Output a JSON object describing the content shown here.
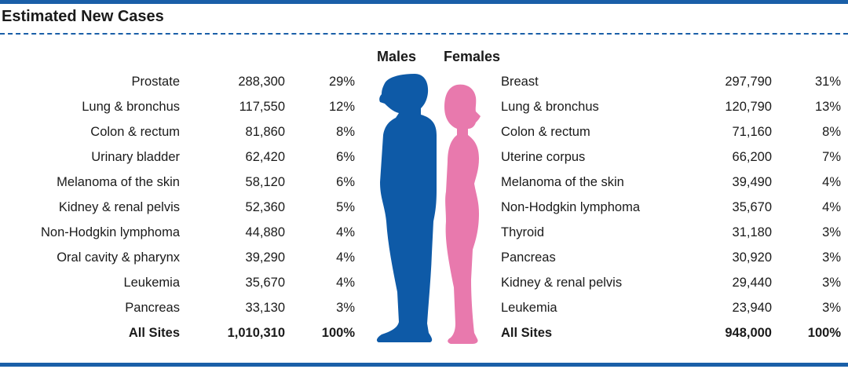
{
  "title": "Estimated New Cases",
  "headers": {
    "males": "Males",
    "females": "Females"
  },
  "colors": {
    "rule": "#1a5fa8",
    "male": "#0e5aa7",
    "female": "#e879ad"
  },
  "chart_data": {
    "type": "table",
    "males": [
      {
        "site": "Prostate",
        "cases": "288,300",
        "pct": "29%"
      },
      {
        "site": "Lung & bronchus",
        "cases": "117,550",
        "pct": "12%"
      },
      {
        "site": "Colon & rectum",
        "cases": "81,860",
        "pct": "8%"
      },
      {
        "site": "Urinary bladder",
        "cases": "62,420",
        "pct": "6%"
      },
      {
        "site": "Melanoma of the skin",
        "cases": "58,120",
        "pct": "6%"
      },
      {
        "site": "Kidney & renal pelvis",
        "cases": "52,360",
        "pct": "5%"
      },
      {
        "site": "Non-Hodgkin lymphoma",
        "cases": "44,880",
        "pct": "4%"
      },
      {
        "site": "Oral cavity & pharynx",
        "cases": "39,290",
        "pct": "4%"
      },
      {
        "site": "Leukemia",
        "cases": "35,670",
        "pct": "4%"
      },
      {
        "site": "Pancreas",
        "cases": "33,130",
        "pct": "3%"
      }
    ],
    "males_total": {
      "site": "All Sites",
      "cases": "1,010,310",
      "pct": "100%"
    },
    "females": [
      {
        "site": "Breast",
        "cases": "297,790",
        "pct": "31%"
      },
      {
        "site": "Lung & bronchus",
        "cases": "120,790",
        "pct": "13%"
      },
      {
        "site": "Colon & rectum",
        "cases": "71,160",
        "pct": "8%"
      },
      {
        "site": "Uterine corpus",
        "cases": "66,200",
        "pct": "7%"
      },
      {
        "site": "Melanoma of the skin",
        "cases": "39,490",
        "pct": "4%"
      },
      {
        "site": "Non-Hodgkin lymphoma",
        "cases": "35,670",
        "pct": "4%"
      },
      {
        "site": "Thyroid",
        "cases": "31,180",
        "pct": "3%"
      },
      {
        "site": "Pancreas",
        "cases": "30,920",
        "pct": "3%"
      },
      {
        "site": "Kidney & renal pelvis",
        "cases": "29,440",
        "pct": "3%"
      },
      {
        "site": "Leukemia",
        "cases": "23,940",
        "pct": "3%"
      }
    ],
    "females_total": {
      "site": "All Sites",
      "cases": "948,000",
      "pct": "100%"
    }
  }
}
